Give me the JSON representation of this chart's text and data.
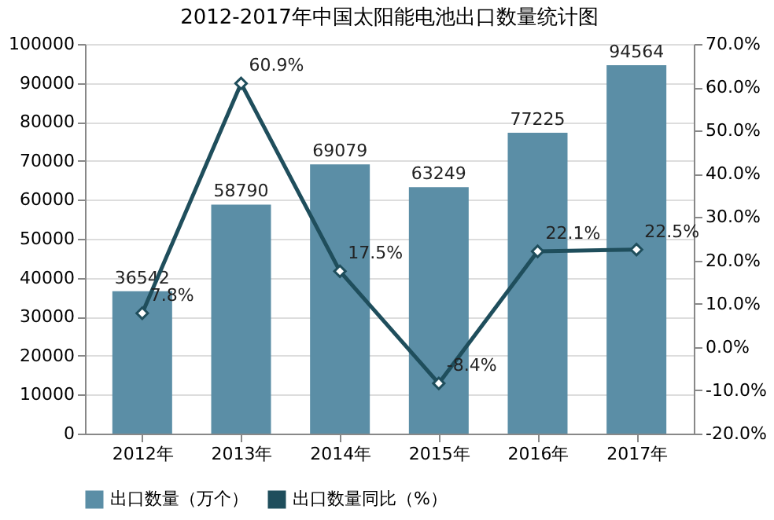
{
  "chart_data": {
    "type": "bar",
    "title": "2012-2017年中国太阳能电池出口数量统计图",
    "categories": [
      "2012年",
      "2013年",
      "2014年",
      "2015年",
      "2016年",
      "2017年"
    ],
    "series": [
      {
        "name": "出口数量（万个）",
        "color": "#5b8ea6",
        "values": [
          36542,
          58790,
          69079,
          63249,
          77225,
          94564
        ],
        "value_labels": [
          "36542",
          "58790",
          "69079",
          "63249",
          "77225",
          "94564"
        ]
      },
      {
        "name": "出口数量同比（%）",
        "type": "line",
        "axis": "y2",
        "color": "#1f4e5c",
        "marker": "diamond",
        "values": [
          7.8,
          60.9,
          17.5,
          -8.4,
          22.1,
          22.5
        ],
        "value_labels": [
          "7.8%",
          "60.9%",
          "17.5%",
          "-8.4%",
          "22.1%",
          "22.5%"
        ]
      }
    ],
    "ylim": [
      0,
      100000
    ],
    "yticks": [
      0,
      10000,
      20000,
      30000,
      40000,
      50000,
      60000,
      70000,
      80000,
      90000,
      100000
    ],
    "y2lim": [
      -20,
      70
    ],
    "y2ticks": [
      {
        "value": -20,
        "label": "-20.0%"
      },
      {
        "value": -10,
        "label": "-10.0%"
      },
      {
        "value": 0,
        "label": "0.0%"
      },
      {
        "value": 10,
        "label": "10.0%"
      },
      {
        "value": 20,
        "label": "20.0%"
      },
      {
        "value": 30,
        "label": "30.0%"
      },
      {
        "value": 40,
        "label": "40.0%"
      },
      {
        "value": 50,
        "label": "50.0%"
      },
      {
        "value": 60,
        "label": "60.0%"
      },
      {
        "value": 70,
        "label": "70.0%"
      }
    ],
    "grid": "y",
    "legend": "bottom"
  }
}
